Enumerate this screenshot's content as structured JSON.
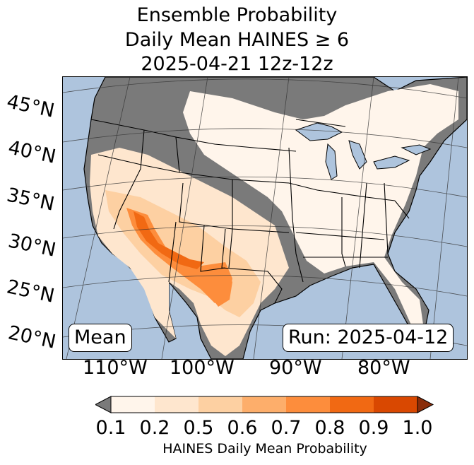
{
  "title": {
    "line1": "Ensemble Probability",
    "line2": "Daily Mean HAINES ≥ 6",
    "line3": "2025-04-21 12z-12z"
  },
  "map": {
    "latitude_labels": [
      "45°N",
      "40°N",
      "35°N",
      "30°N",
      "25°N",
      "20°N"
    ],
    "longitude_labels": [
      "110°W",
      "100°W",
      "90°W",
      "80°W"
    ],
    "mean_label": "Mean",
    "run_label": "Run: 2025-04-12",
    "colors": {
      "ocean": "#aec4dd",
      "missing_land": "#7a7a7a",
      "lakes": "#aec4dd"
    }
  },
  "colorbar": {
    "label": "HAINES Daily Mean Probability",
    "ticks": [
      "0.1",
      "0.2",
      "0.5",
      "0.6",
      "0.7",
      "0.8",
      "0.9",
      "1.0"
    ],
    "under_color": "#7a7a7a",
    "over_color": "#8a2d0a",
    "bin_colors": [
      "#fff5eb",
      "#fee6ce",
      "#fdd0a2",
      "#fdae6b",
      "#fd8d3c",
      "#f16913",
      "#d94801"
    ]
  }
}
